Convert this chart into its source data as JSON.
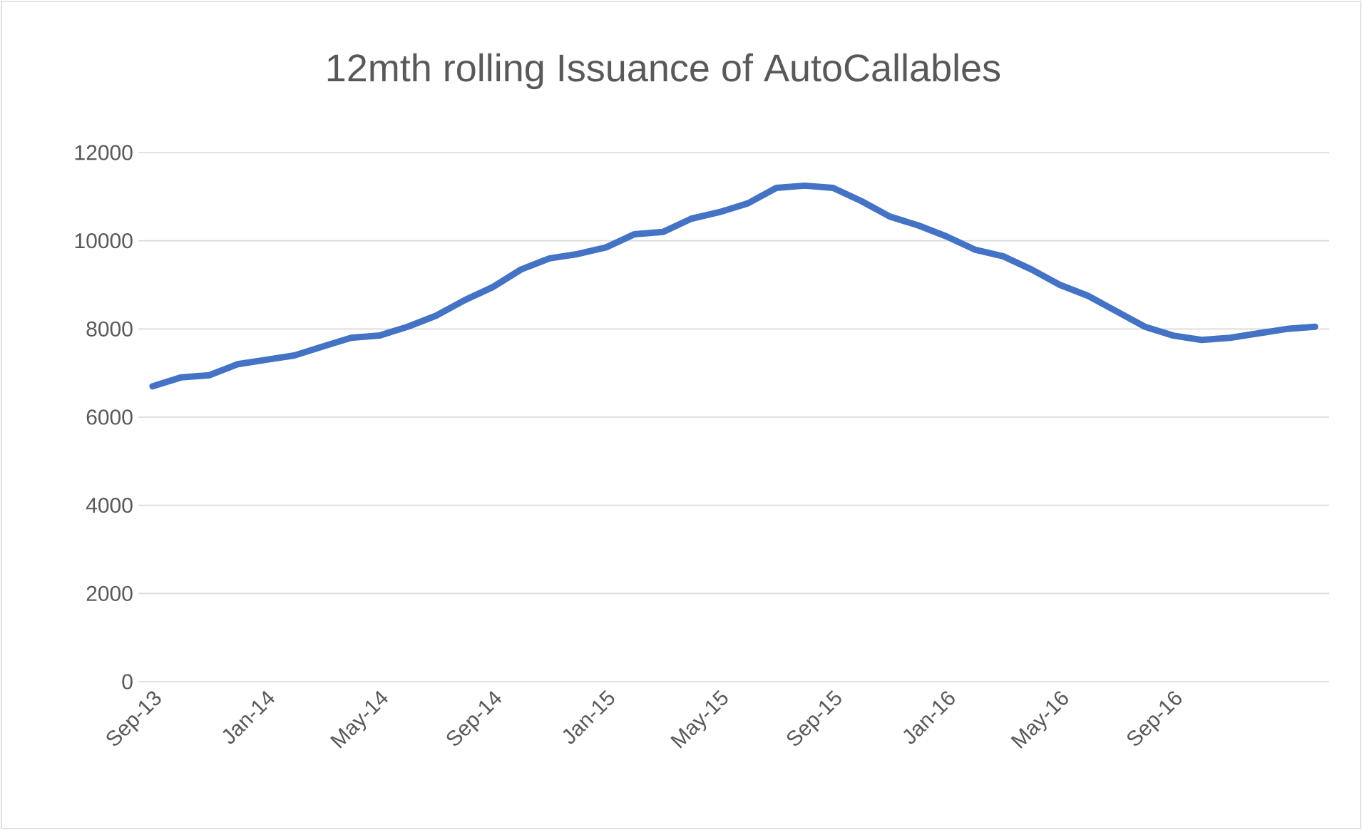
{
  "chart_data": {
    "type": "line",
    "title": "12mth rolling Issuance of AutoCallables",
    "categories": [
      "Sep-13",
      null,
      null,
      null,
      "Jan-14",
      null,
      null,
      null,
      "May-14",
      null,
      null,
      null,
      "Sep-14",
      null,
      null,
      null,
      "Jan-15",
      null,
      null,
      null,
      "May-15",
      null,
      null,
      null,
      "Sep-15",
      null,
      null,
      null,
      "Jan-16",
      null,
      null,
      null,
      "May-16",
      null,
      null,
      null,
      "Sep-16",
      null,
      null,
      null,
      null,
      null
    ],
    "values": [
      6700,
      6900,
      6950,
      7200,
      7300,
      7400,
      7600,
      7800,
      7850,
      8050,
      8300,
      8650,
      8950,
      9350,
      9600,
      9700,
      9850,
      10150,
      10200,
      10500,
      10650,
      10850,
      11200,
      11250,
      11200,
      10900,
      10550,
      10350,
      10100,
      9800,
      9650,
      9350,
      9000,
      8750,
      8400,
      8050,
      7850,
      7750,
      7800,
      7900,
      8000,
      8050
    ],
    "color": "#4472c4",
    "ylim": [
      0,
      12000
    ],
    "yticks": [
      0,
      2000,
      4000,
      6000,
      8000,
      10000,
      12000
    ],
    "grid": "y"
  }
}
